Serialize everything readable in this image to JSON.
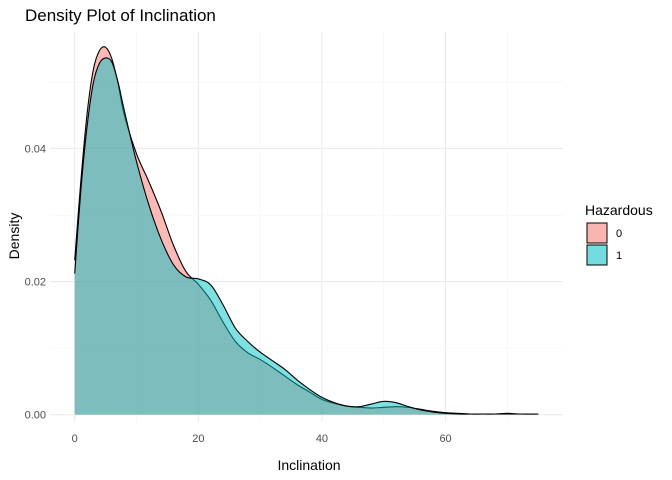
{
  "chart_data": {
    "type": "area",
    "title": "Density Plot of Inclination",
    "xlabel": "Inclination",
    "ylabel": "Density",
    "xlim": [
      -4,
      79
    ],
    "ylim": [
      -0.0011,
      0.0575
    ],
    "x_ticks": [
      0,
      20,
      40,
      60
    ],
    "x_tick_labels": [
      "0",
      "20",
      "40",
      "60"
    ],
    "y_ticks": [
      0,
      0.02,
      0.04
    ],
    "y_tick_labels": [
      "0.00",
      "0.02",
      "0.04"
    ],
    "grid": true,
    "legend": {
      "title": "Hazardous",
      "placement": "right"
    },
    "series": [
      {
        "name": "0",
        "color": "#F8766D",
        "x": [
          0,
          1,
          2,
          3,
          4,
          5,
          6,
          7,
          8,
          10,
          12,
          14,
          16,
          18,
          20,
          22,
          24,
          26,
          28,
          30,
          32,
          34,
          36,
          38,
          40,
          42,
          44,
          46,
          48,
          50,
          52,
          54,
          56,
          58,
          60,
          62,
          64,
          66,
          68,
          70,
          72,
          75
        ],
        "y": [
          0.0232,
          0.0352,
          0.0452,
          0.0518,
          0.0547,
          0.0552,
          0.0535,
          0.0498,
          0.0451,
          0.0392,
          0.035,
          0.0305,
          0.0254,
          0.0215,
          0.0196,
          0.0172,
          0.0139,
          0.011,
          0.0093,
          0.0083,
          0.0071,
          0.0058,
          0.0045,
          0.0034,
          0.0023,
          0.0017,
          0.0013,
          0.0011,
          0.001,
          0.0011,
          0.0012,
          0.0011,
          0.0008,
          0.0005,
          0.0003,
          0.0002,
          0.0001,
          0.0001,
          0.0001,
          0.0002,
          0.0001,
          0.0001
        ]
      },
      {
        "name": "1",
        "color": "#00BFC4",
        "x": [
          0,
          1,
          2,
          3,
          4,
          5,
          6,
          7,
          8,
          10,
          12,
          14,
          16,
          18,
          20,
          22,
          24,
          26,
          28,
          30,
          32,
          34,
          36,
          38,
          40,
          42,
          44,
          46,
          48,
          50,
          52,
          54,
          56,
          58,
          60,
          62,
          64,
          66,
          68,
          70,
          72,
          75
        ],
        "y": [
          0.0212,
          0.0338,
          0.0433,
          0.0498,
          0.0528,
          0.0536,
          0.053,
          0.05,
          0.0458,
          0.038,
          0.0315,
          0.0263,
          0.0225,
          0.0207,
          0.0204,
          0.0195,
          0.0165,
          0.013,
          0.011,
          0.0094,
          0.0081,
          0.0068,
          0.0052,
          0.0038,
          0.0026,
          0.0018,
          0.0013,
          0.0012,
          0.0016,
          0.002,
          0.0018,
          0.0012,
          0.0007,
          0.0004,
          0.0002,
          0.0001,
          0.0001,
          0.0001,
          0.0001,
          0.0001,
          0.0001,
          0.0001
        ]
      }
    ]
  }
}
